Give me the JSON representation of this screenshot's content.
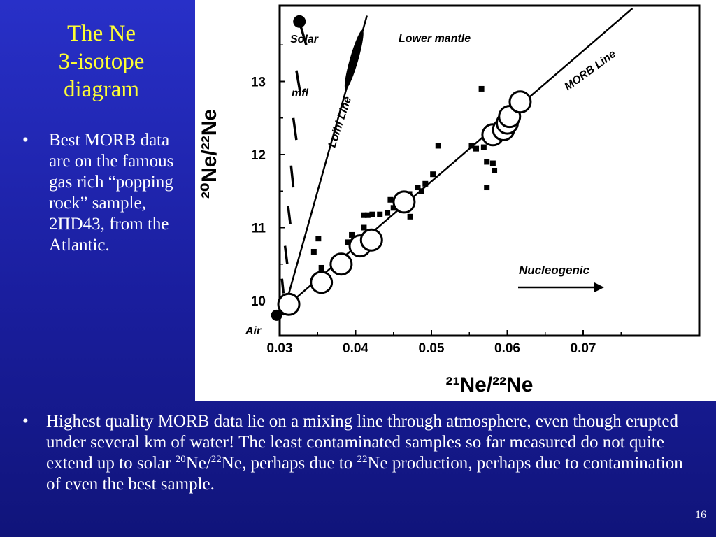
{
  "slide": {
    "title_lines": [
      "The Ne",
      "3-isotope",
      "diagram"
    ],
    "side_bullet": "Best MORB data are on the famous gas rich “popping rock” sample, 2ΠD43, from the Atlantic.",
    "bottom_bullet": {
      "part1": "Highest quality MORB data lie on a mixing line through atmosphere, even though erupted under several km of water!  The least contaminated samples so far measured do not quite extend up to solar ",
      "sup1": "20",
      "part2": "Ne/",
      "sup2": "22",
      "part3": "Ne, perhaps due to ",
      "sup3": "22",
      "part4": "Ne production, perhaps due to contamination of even the best sample."
    },
    "page_number": "16",
    "bullet_symbol": "•"
  },
  "chart_data": {
    "type": "scatter",
    "xlabel": "²¹Ne/²²Ne",
    "ylabel": "²⁰Ne/²²Ne",
    "x_ticks": [
      "0.03",
      "0.04",
      "0.05",
      "0.06",
      "0.07"
    ],
    "y_ticks": [
      "10",
      "11",
      "12",
      "13"
    ],
    "xlim": [
      0.029,
      0.0775
    ],
    "ylim": [
      9.75,
      13.9
    ],
    "annotations": {
      "solar": "Solar",
      "lower_mantle": "Lower mantle",
      "mfl": "mfl",
      "loihi": "Loihi Line",
      "morb": "MORB Line",
      "nucleogenic": "Nucleogenic",
      "air": "Air"
    },
    "lines": {
      "morb_line": [
        [
          0.0295,
          9.8
        ],
        [
          0.0765,
          14.0
        ]
      ],
      "loihi_line": [
        [
          0.0304,
          9.8
        ],
        [
          0.0415,
          13.9
        ]
      ],
      "mfl_segments": [
        [
          [
            0.0325,
            13.85
          ],
          [
            0.0335,
            13.5
          ]
        ],
        [
          [
            0.0322,
            13.15
          ],
          [
            0.0327,
            12.85
          ]
        ],
        [
          [
            0.0318,
            12.5
          ],
          [
            0.0322,
            12.2
          ]
        ],
        [
          [
            0.0315,
            11.85
          ],
          [
            0.0318,
            11.55
          ]
        ],
        [
          [
            0.0311,
            11.3
          ],
          [
            0.0314,
            11.05
          ]
        ],
        [
          [
            0.0307,
            10.75
          ],
          [
            0.031,
            10.5
          ]
        ],
        [
          [
            0.0303,
            10.3
          ],
          [
            0.0305,
            10.1
          ]
        ]
      ]
    },
    "series": [
      {
        "name": "Best MORB (large circles)",
        "points": [
          [
            0.0312,
            9.95
          ],
          [
            0.0355,
            10.25
          ],
          [
            0.0381,
            10.5
          ],
          [
            0.0406,
            10.75
          ],
          [
            0.0421,
            10.83
          ],
          [
            0.0464,
            11.35
          ],
          [
            0.0581,
            12.27
          ],
          [
            0.0595,
            12.34
          ],
          [
            0.06,
            12.43
          ],
          [
            0.0603,
            12.52
          ],
          [
            0.0617,
            12.72
          ]
        ]
      },
      {
        "name": "MORB (small squares)",
        "points": [
          [
            0.0355,
            10.45
          ],
          [
            0.0345,
            10.67
          ],
          [
            0.0351,
            10.85
          ],
          [
            0.0395,
            10.9
          ],
          [
            0.039,
            10.8
          ],
          [
            0.0411,
            11.0
          ],
          [
            0.0416,
            11.17
          ],
          [
            0.0411,
            11.17
          ],
          [
            0.0422,
            11.18
          ],
          [
            0.0432,
            11.18
          ],
          [
            0.0442,
            11.2
          ],
          [
            0.045,
            11.27
          ],
          [
            0.0446,
            11.38
          ],
          [
            0.0462,
            11.43
          ],
          [
            0.0471,
            11.46
          ],
          [
            0.0482,
            11.55
          ],
          [
            0.0492,
            11.6
          ],
          [
            0.0502,
            11.73
          ],
          [
            0.0487,
            11.5
          ],
          [
            0.0472,
            11.15
          ],
          [
            0.0553,
            12.12
          ],
          [
            0.0559,
            12.08
          ],
          [
            0.0569,
            12.1
          ],
          [
            0.0573,
            11.9
          ],
          [
            0.0581,
            11.88
          ],
          [
            0.0583,
            11.78
          ],
          [
            0.0573,
            11.55
          ],
          [
            0.0566,
            12.9
          ],
          [
            0.0509,
            12.12
          ]
        ]
      },
      {
        "name": "Air",
        "points": [
          [
            0.0296,
            9.8
          ]
        ]
      },
      {
        "name": "Solar",
        "points": [
          [
            0.0326,
            13.82
          ]
        ]
      }
    ]
  }
}
